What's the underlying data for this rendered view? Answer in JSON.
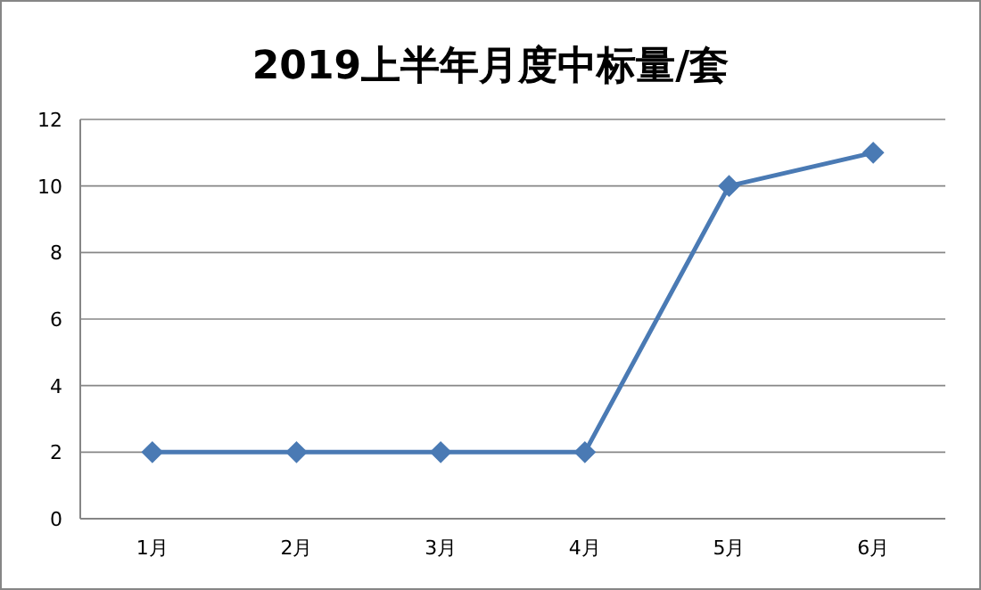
{
  "chart_data": {
    "type": "line",
    "title": "2019上半年月度中标量/套",
    "categories": [
      "1月",
      "2月",
      "3月",
      "4月",
      "5月",
      "6月"
    ],
    "values": [
      2,
      2,
      2,
      2,
      10,
      11
    ],
    "color": "#4a7ab4",
    "ylim": [
      0,
      12
    ],
    "yticks": [
      0,
      2,
      4,
      6,
      8,
      10,
      12
    ],
    "grid": "y",
    "marker": "diamond",
    "line_style": "solid"
  }
}
